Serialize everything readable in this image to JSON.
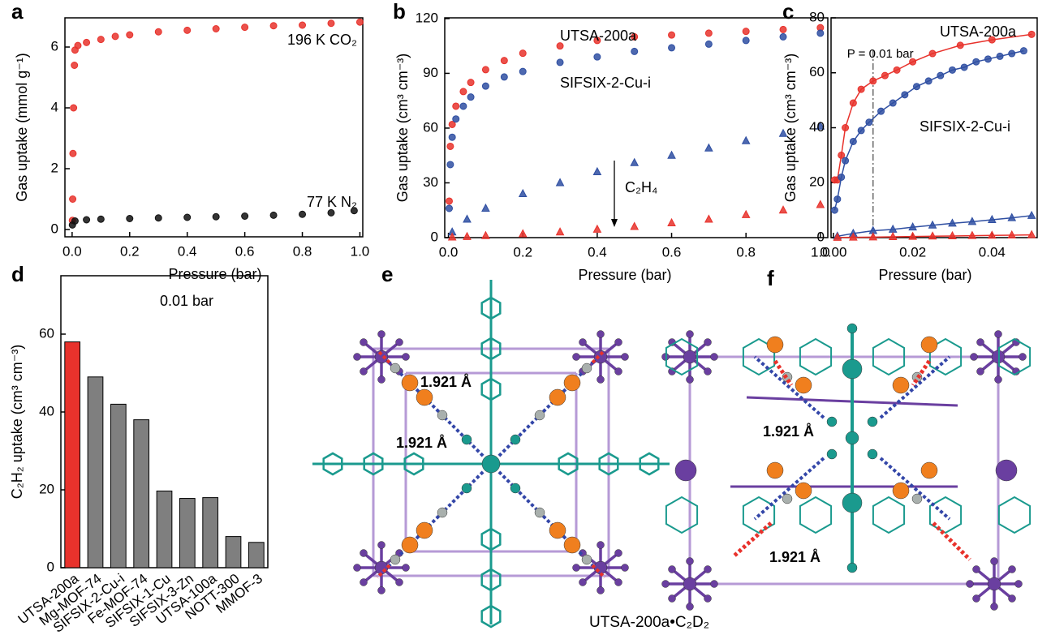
{
  "chart_data": [
    {
      "type": "scatter",
      "label": "a",
      "x_label": "Pressure (bar)",
      "y_label": "Gas uptake (mmol g⁻¹)",
      "xlim": [
        -0.025,
        1.01
      ],
      "ylim": [
        -0.24,
        6.96
      ],
      "xticks": [
        {
          "value": 0,
          "label": "0.0"
        },
        0.2,
        0.4,
        0.6,
        0.8,
        {
          "value": 1,
          "label": "1.0"
        }
      ],
      "yticks": [
        0,
        2,
        4,
        6
      ],
      "annotations": [
        {
          "text": "196 K CO₂",
          "color": "#e8322c"
        },
        {
          "text": "77 K N₂",
          "color": "#000000"
        }
      ],
      "series": [
        {
          "color": "#e8322c",
          "marker": "circle",
          "x": [
            0.001,
            0.002,
            0.003,
            0.005,
            0.008,
            0.01,
            0.02,
            0.05,
            0.1,
            0.15,
            0.2,
            0.3,
            0.4,
            0.5,
            0.6,
            0.7,
            0.8,
            0.9,
            1.0
          ],
          "values": [
            0.3,
            1.0,
            2.5,
            4.0,
            5.4,
            5.9,
            6.05,
            6.15,
            6.25,
            6.35,
            6.4,
            6.5,
            6.55,
            6.6,
            6.65,
            6.7,
            6.72,
            6.78,
            6.82
          ]
        },
        {
          "color": "#111111",
          "marker": "circle",
          "x": [
            0.001,
            0.01,
            0.05,
            0.1,
            0.2,
            0.3,
            0.4,
            0.5,
            0.6,
            0.7,
            0.8,
            0.9,
            0.98
          ],
          "values": [
            0.15,
            0.28,
            0.32,
            0.34,
            0.36,
            0.38,
            0.4,
            0.42,
            0.44,
            0.47,
            0.5,
            0.55,
            0.62
          ]
        }
      ]
    },
    {
      "type": "scatter",
      "label": "b",
      "x_label": "Pressure (bar)",
      "y_label": "Gas uptake (cm³ cm⁻³)",
      "xlim": [
        -0.01,
        1.02
      ],
      "ylim": [
        0,
        120.4
      ],
      "xticks": [
        {
          "value": 0,
          "label": "0.0"
        },
        0.2,
        0.4,
        0.6,
        0.8,
        {
          "value": 1,
          "label": "1.0"
        }
      ],
      "yticks": [
        0,
        30,
        60,
        90,
        120
      ],
      "annotations": [
        {
          "text": "C₂H₄",
          "color": "#000000"
        }
      ],
      "series": [
        {
          "name": "UTSA-200a",
          "color": "#e8322c",
          "marker": "circle",
          "x": [
            0.002,
            0.005,
            0.01,
            0.02,
            0.04,
            0.06,
            0.1,
            0.15,
            0.2,
            0.3,
            0.4,
            0.5,
            0.6,
            0.7,
            0.8,
            0.9,
            1.0
          ],
          "values": [
            20,
            50,
            62,
            72,
            80,
            85,
            92,
            97,
            101,
            105,
            108,
            110,
            111,
            112,
            113,
            114,
            115
          ]
        },
        {
          "name": "SIFSIX-2-Cu-i",
          "color": "#2f4fa2",
          "marker": "circle",
          "x": [
            0.002,
            0.005,
            0.01,
            0.02,
            0.04,
            0.06,
            0.1,
            0.15,
            0.2,
            0.3,
            0.4,
            0.5,
            0.6,
            0.7,
            0.8,
            0.9,
            1.0
          ],
          "values": [
            16,
            40,
            55,
            65,
            72,
            77,
            83,
            88,
            91,
            96,
            99,
            102,
            104,
            106,
            108,
            110,
            112
          ]
        },
        {
          "color": "#2f4fa2",
          "marker": "triangle",
          "x": [
            0.01,
            0.05,
            0.1,
            0.2,
            0.3,
            0.4,
            0.5,
            0.6,
            0.7,
            0.8,
            0.9,
            1.0
          ],
          "values": [
            3,
            10,
            16,
            24,
            30,
            36,
            41,
            45,
            49,
            53,
            57,
            61
          ]
        },
        {
          "color": "#e8322c",
          "marker": "triangle",
          "x": [
            0.01,
            0.05,
            0.1,
            0.2,
            0.3,
            0.4,
            0.5,
            0.6,
            0.7,
            0.8,
            0.9,
            1.0
          ],
          "values": [
            0.2,
            0.5,
            1,
            2,
            3,
            4.5,
            6,
            8,
            10,
            12.5,
            15,
            18
          ]
        }
      ]
    },
    {
      "type": "scatter",
      "label": "c",
      "x_label": "Pressure (bar)",
      "y_label": "Gas uptake (cm³ cm⁻³)",
      "xlim": [
        -0.0006,
        0.0514
      ],
      "ylim": [
        0,
        80
      ],
      "line": true,
      "xticks": [
        {
          "value": 0,
          "label": "0.00"
        },
        0.02,
        0.04
      ],
      "yticks": [
        0,
        20,
        40,
        60,
        80
      ],
      "reference_line": {
        "x": 0.01,
        "label": "P = 0.01 bar"
      },
      "series": [
        {
          "name": "UTSA-200a",
          "color": "#e8322c",
          "marker": "circle",
          "x": [
            0.0003,
            0.001,
            0.002,
            0.003,
            0.005,
            0.007,
            0.01,
            0.013,
            0.016,
            0.02,
            0.025,
            0.032,
            0.04,
            0.05
          ],
          "values": [
            21,
            21,
            30,
            40,
            49,
            54,
            57,
            59,
            61,
            64,
            67,
            70,
            72,
            74
          ]
        },
        {
          "name": "SIFSIX-2-Cu-i",
          "color": "#2f4fa2",
          "marker": "circle",
          "x": [
            0.0003,
            0.001,
            0.002,
            0.003,
            0.005,
            0.007,
            0.009,
            0.012,
            0.015,
            0.018,
            0.021,
            0.024,
            0.027,
            0.03,
            0.033,
            0.036,
            0.039,
            0.042,
            0.045,
            0.048
          ],
          "values": [
            10,
            14,
            22,
            28,
            35,
            39,
            42,
            46,
            49,
            52,
            55,
            57,
            59,
            61,
            62,
            64,
            65,
            66,
            67,
            68
          ]
        },
        {
          "color": "#2f4fa2",
          "marker": "triangle",
          "x": [
            0.001,
            0.005,
            0.01,
            0.015,
            0.02,
            0.025,
            0.03,
            0.035,
            0.04,
            0.045,
            0.05
          ],
          "values": [
            0.5,
            1.5,
            2.5,
            3,
            3.8,
            4.5,
            5.2,
            5.8,
            6.5,
            7.2,
            8
          ]
        },
        {
          "color": "#e8322c",
          "marker": "triangle",
          "x": [
            0.001,
            0.005,
            0.01,
            0.015,
            0.02,
            0.025,
            0.03,
            0.035,
            0.04,
            0.045,
            0.05
          ],
          "values": [
            0.05,
            0.1,
            0.2,
            0.3,
            0.4,
            0.5,
            0.6,
            0.7,
            0.8,
            0.9,
            1
          ]
        }
      ]
    },
    {
      "type": "bar",
      "label": "d",
      "y_label": "C₂H₂ uptake (cm³ cm⁻³)",
      "ylim": [
        0,
        75
      ],
      "yticks": [
        0,
        20,
        40,
        60
      ],
      "annotations": [
        {
          "text": "0.01 bar",
          "color": "#000000"
        }
      ],
      "categories": [
        "UTSA-200a",
        "Mg-MOF-74",
        "SIFSIX-2-Cu-i",
        "Fe-MOF-74",
        "SIFSIX-1-Cu",
        "SIFSIX-3-Zn",
        "UTSA-100a",
        "NOTT-300",
        "MMOF-3"
      ],
      "values": [
        58,
        49,
        42,
        38,
        19.7,
        17.8,
        18,
        8,
        6.5
      ],
      "colors": [
        "#e8322c",
        "#7f7f7f",
        "#7f7f7f",
        "#7f7f7f",
        "#7f7f7f",
        "#7f7f7f",
        "#7f7f7f",
        "#7f7f7f",
        "#7f7f7f"
      ],
      "label_colors": [
        "#e8322c",
        "#000000",
        "#000000",
        "#000000",
        "#000000",
        "#000000",
        "#000000",
        "#000000",
        "#000000"
      ]
    }
  ],
  "structures": [
    {
      "label": "e",
      "annotations": [
        "1.921 Å",
        "1.921 Å"
      ]
    },
    {
      "label": "f",
      "annotations": [
        "1.921 Å",
        "1.921 Å"
      ]
    }
  ],
  "caption": "UTSA-200a•C₂D₂"
}
